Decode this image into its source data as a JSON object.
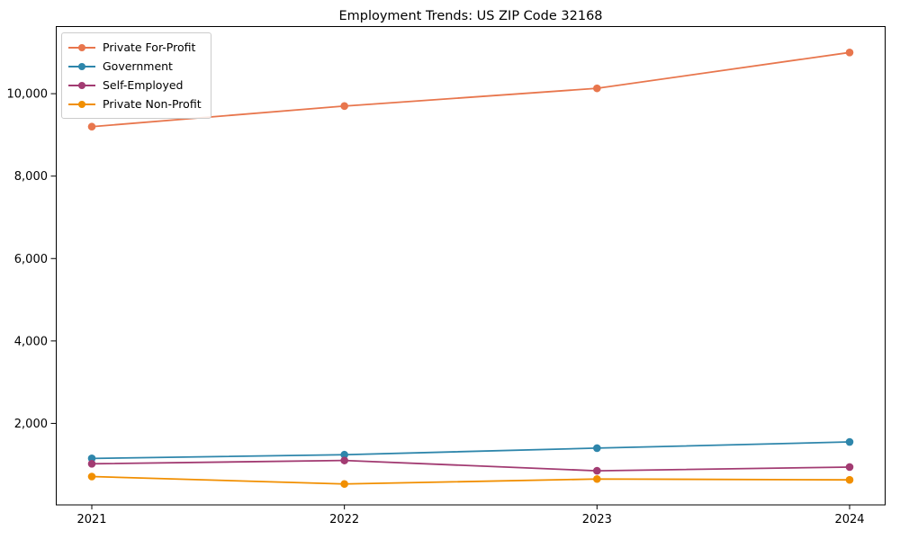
{
  "chart_data": {
    "type": "line",
    "title": "Employment Trends: US ZIP Code 32168",
    "categories": [
      "2021",
      "2022",
      "2023",
      "2024"
    ],
    "series": [
      {
        "name": "Private For-Profit",
        "color": "#E8764D",
        "values": [
          9200,
          9700,
          10130,
          11000
        ]
      },
      {
        "name": "Government",
        "color": "#2E86AB",
        "values": [
          1150,
          1240,
          1400,
          1550
        ]
      },
      {
        "name": "Self-Employed",
        "color": "#A23B72",
        "values": [
          1020,
          1100,
          850,
          940
        ]
      },
      {
        "name": "Private Non-Profit",
        "color": "#F18F01",
        "values": [
          710,
          530,
          650,
          630
        ]
      }
    ],
    "xlabel": "",
    "ylabel": "",
    "ylim": [
      33,
      11640
    ],
    "yticks": [
      2000,
      4000,
      6000,
      8000,
      10000
    ],
    "ytick_labels": [
      "2,000",
      "4,000",
      "6,000",
      "8,000",
      "10,000"
    ],
    "legend_position": "upper-left",
    "grid": false,
    "axis_color": "#000000",
    "background_color": "#ffffff"
  }
}
